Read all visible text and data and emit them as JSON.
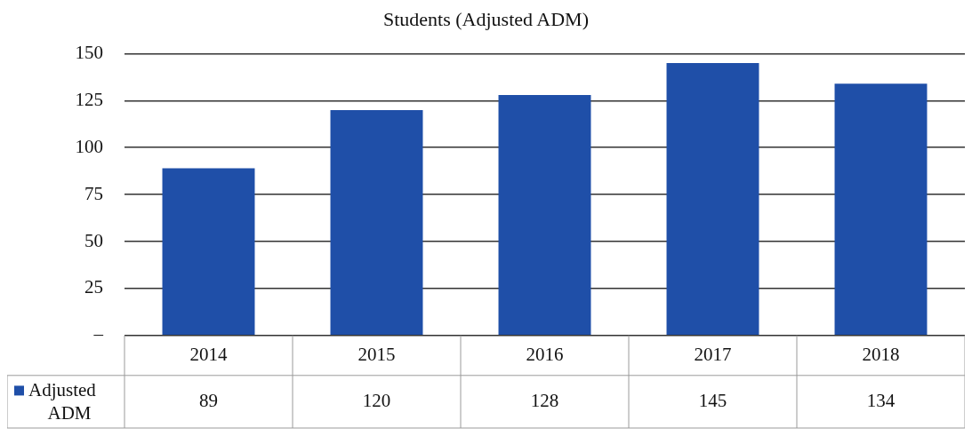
{
  "chart_data": {
    "type": "bar",
    "title": "Students (Adjusted ADM)",
    "categories": [
      "2014",
      "2015",
      "2016",
      "2017",
      "2018"
    ],
    "series": [
      {
        "name": "Adjusted ADM",
        "color": "#1f4fa8",
        "values": [
          89,
          120,
          128,
          145,
          134
        ]
      }
    ],
    "ylim": [
      0,
      150
    ],
    "yticks": [
      {
        "value": 0,
        "label": "–"
      },
      25,
      50,
      75,
      100,
      125,
      150
    ],
    "grid": "y",
    "legend": "bottom",
    "data_labels": true
  }
}
